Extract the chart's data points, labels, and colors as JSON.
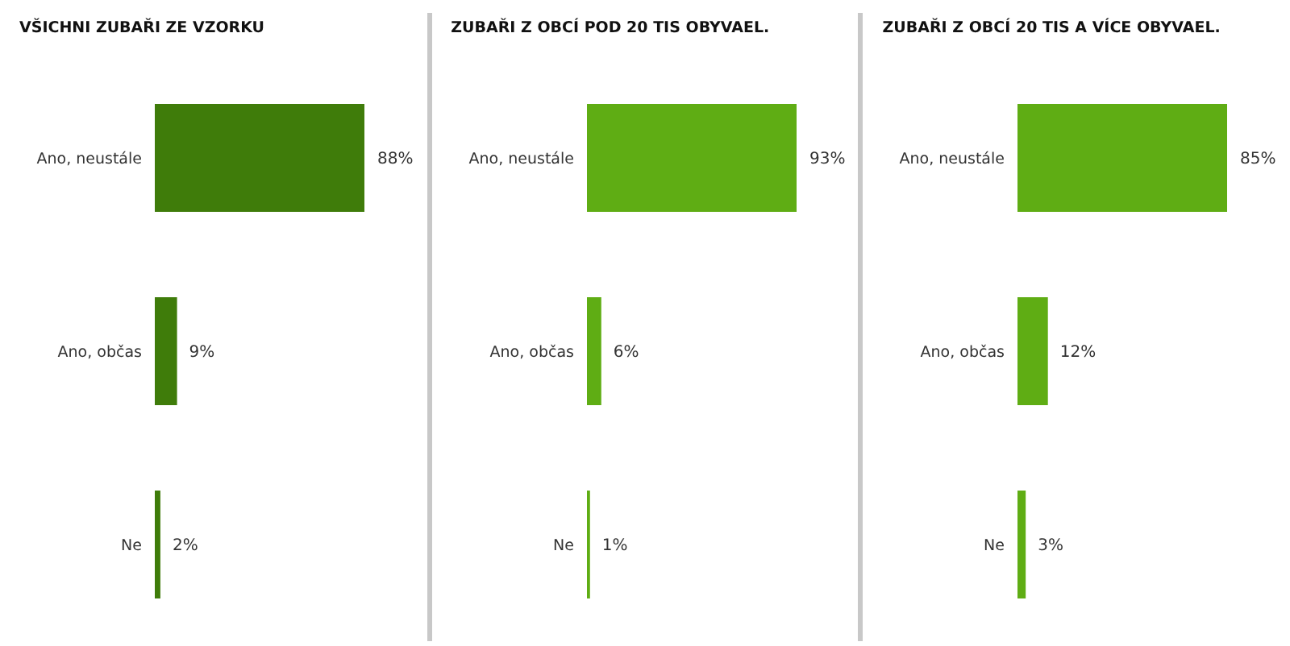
{
  "chart_data": [
    {
      "type": "bar",
      "orientation": "horizontal",
      "title": "VŠICHNI ZUBAŘI ZE VZORKU",
      "categories": [
        "Ano, neustále",
        "Ano, občas",
        "Ne"
      ],
      "values": [
        88,
        9,
        2
      ],
      "value_labels": [
        "88%",
        "9%",
        "2%"
      ],
      "color": "#3f7c0a"
    },
    {
      "type": "bar",
      "orientation": "horizontal",
      "title": "ZUBAŘI Z OBCÍ POD 20 TIS OBYVAEL.",
      "categories": [
        "Ano, neustále",
        "Ano, občas",
        "Ne"
      ],
      "values": [
        93,
        6,
        1
      ],
      "value_labels": [
        "93%",
        "6%",
        "1%"
      ],
      "color": "#5fad14"
    },
    {
      "type": "bar",
      "orientation": "horizontal",
      "title": "ZUBAŘI Z OBCÍ 20 TIS A VÍCE OBYVAEL.",
      "categories": [
        "Ano, neustále",
        "Ano, občas",
        "Ne"
      ],
      "values": [
        85,
        12,
        3
      ],
      "value_labels": [
        "85%",
        "12%",
        "3%"
      ],
      "color": "#5fad14"
    }
  ]
}
